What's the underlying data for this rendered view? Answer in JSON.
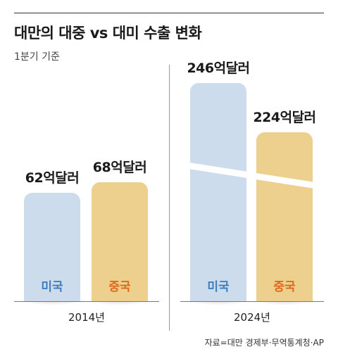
{
  "title": "대만의 대중 vs 대미 수출 변화",
  "unit_note": "1분기 기준",
  "source": "자료=대만 경제부·무역통계청·AP",
  "colors": {
    "us": "#cddcec",
    "cn": "#edd08e",
    "us_label": "#3d7fc0",
    "cn_label": "#e06a1c"
  },
  "chart_data": {
    "type": "bar",
    "title": "대만의 대중 vs 대미 수출 변화",
    "subtitle": "1분기 기준",
    "categories": [
      "2014년",
      "2024년"
    ],
    "series": [
      {
        "name": "미국",
        "values": [
          62,
          246
        ],
        "labels": [
          "62억달러",
          "246억달러"
        ]
      },
      {
        "name": "중국",
        "values": [
          68,
          224
        ],
        "labels": [
          "68억달러",
          "224억달러"
        ]
      }
    ],
    "broken_axis": true
  }
}
